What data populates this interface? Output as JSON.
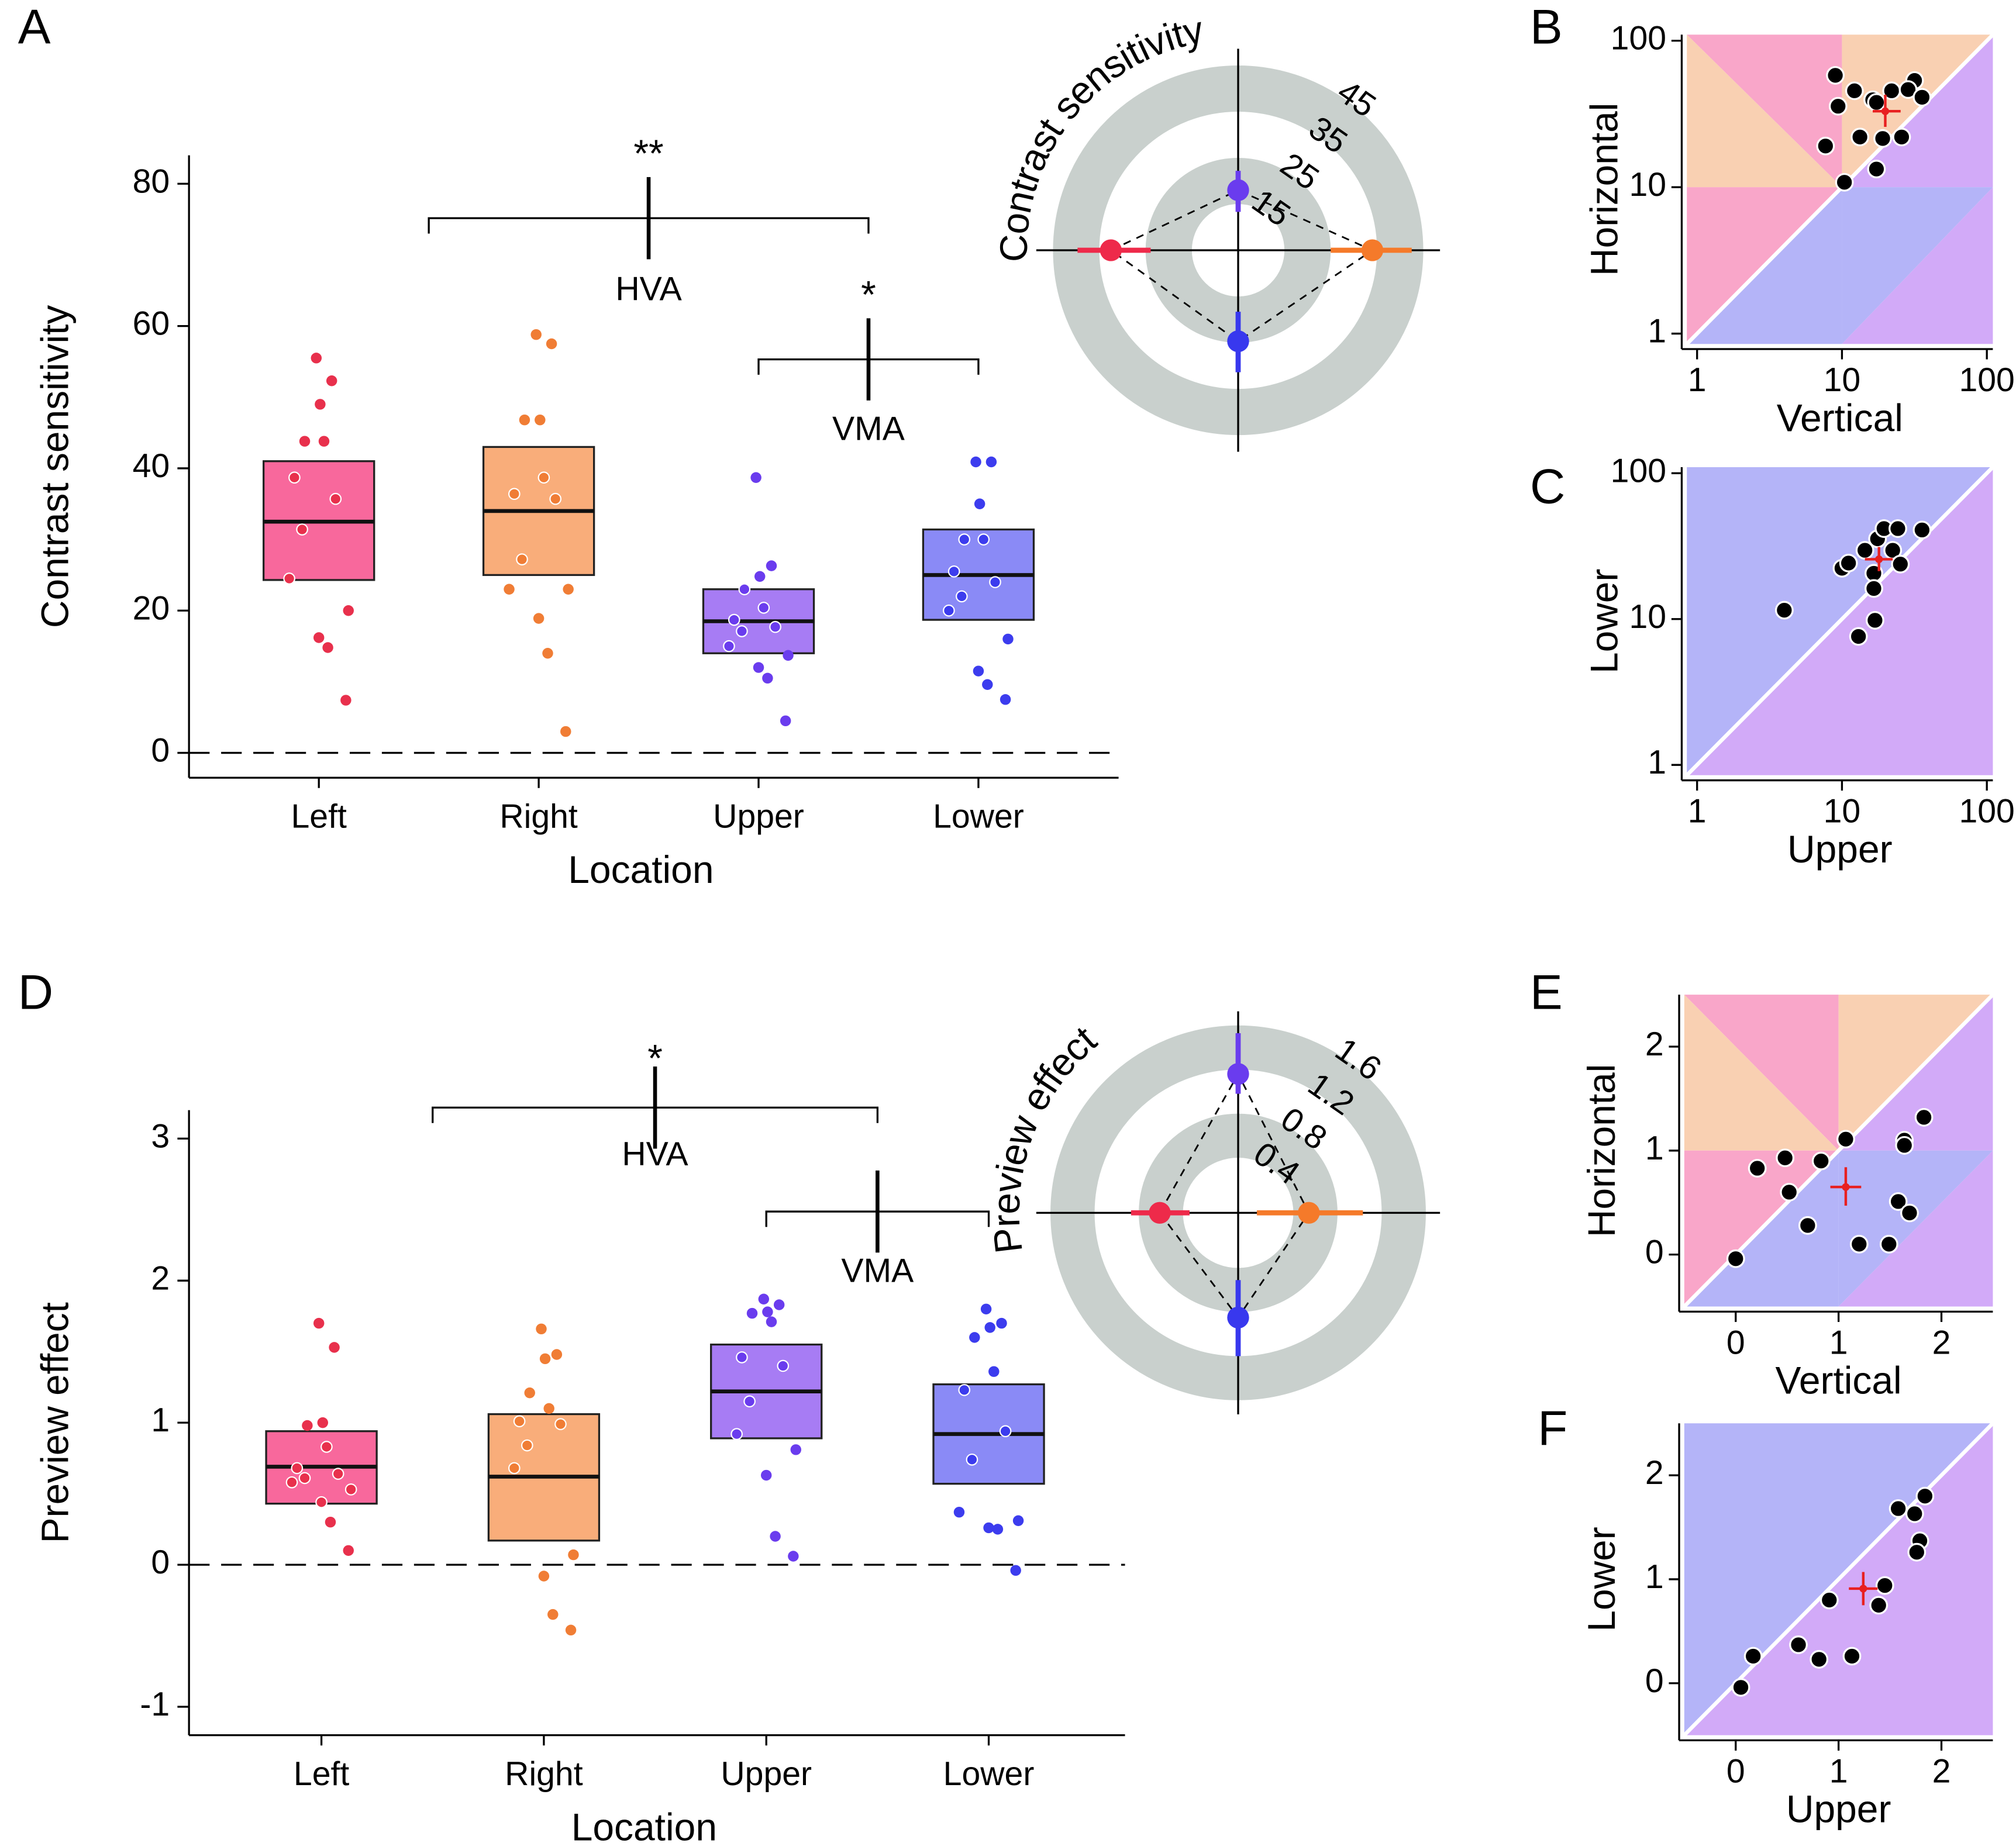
{
  "chart_data": [
    {
      "type": "box",
      "panel": "A",
      "ylabel": "Contrast sensitivity",
      "xlabel": "Location",
      "categories": [
        "Left",
        "Right",
        "Upper",
        "Lower"
      ],
      "box_colors": [
        "#f8689c",
        "#f9ad7a",
        "#a77cf4",
        "#8a8af6"
      ],
      "point_colors": [
        "#e8304c",
        "#f07d35",
        "#6a3cee",
        "#3c3cee"
      ],
      "boxes": [
        {
          "q1": 24.3,
          "median": 32.5,
          "q3": 41
        },
        {
          "q1": 25,
          "median": 34,
          "q3": 43
        },
        {
          "q1": 14,
          "median": 18.5,
          "q3": 23
        },
        {
          "q1": 18.7,
          "median": 25,
          "q3": 31.4
        }
      ],
      "points": [
        [
          55.5,
          52.3,
          49,
          43.8,
          43.8,
          38.7,
          35.7,
          31.4,
          24.5,
          20,
          16.2,
          14.8,
          7.4
        ],
        [
          58.8,
          57.5,
          46.8,
          46.8,
          38.7,
          36.4,
          35.7,
          27.2,
          23,
          23,
          18.9,
          14,
          3
        ],
        [
          38.7,
          26.3,
          24.8,
          23,
          20.4,
          18.7,
          17.7,
          17.1,
          15,
          13.7,
          12,
          10.5,
          4.5
        ],
        [
          40.9,
          40.9,
          35,
          30,
          30,
          25.5,
          24,
          22,
          20,
          16,
          11.5,
          9.6,
          7.5
        ]
      ],
      "brackets": [
        {
          "stars": "**",
          "label": "HVA"
        },
        {
          "stars": "*",
          "label": "VMA"
        }
      ],
      "ylim": [
        -3.5,
        84
      ],
      "yticks": [
        0,
        20,
        40,
        60,
        80
      ]
    },
    {
      "type": "polar",
      "title": "Contrast sensitivity",
      "values": [
        32.5,
        34,
        18,
        24.7
      ],
      "errors": [
        [
          23.9,
          39.7
        ],
        [
          25,
          42.5
        ],
        [
          13.3,
          22.2
        ],
        [
          18.3,
          31.4
        ]
      ],
      "colors": [
        "#ee2a4a",
        "#f57a2a",
        "#6a3cee",
        "#3838ee"
      ],
      "ring_color": "#c9d0cd",
      "rlim": [
        5,
        45
      ],
      "rticks": [
        15,
        25,
        35,
        45
      ]
    },
    {
      "type": "scatter",
      "panel": "B",
      "log": true,
      "xlabel": "Vertical",
      "ylabel": "Horizontal",
      "x": [
        9.0,
        12.2,
        16.3,
        22,
        31.7,
        28.6,
        35.7,
        17.3,
        9.4,
        7.7,
        13.3,
        19.1,
        25.8,
        10.4,
        17.3
      ],
      "y": [
        58,
        45.5,
        39.5,
        45.5,
        53.5,
        46.4,
        41.1,
        37.9,
        35.7,
        19.1,
        22,
        21.5,
        22,
        10.8,
        13.3
      ],
      "mean": {
        "x": 19.9,
        "y": 33,
        "xerr": [
          16.3,
          25.4
        ],
        "yerr": [
          25.8,
          42.8
        ]
      },
      "mean_color": "#e82020",
      "background_colors": [
        "#f9a6c9",
        "#f9d0b2",
        "#d2aaf8",
        "#b4b4f8"
      ],
      "xlim": [
        0.85,
        110
      ],
      "ylim": [
        0.85,
        110
      ],
      "xticks": [
        1,
        10,
        100
      ],
      "yticks": [
        1,
        10,
        100
      ]
    },
    {
      "type": "scatter",
      "panel": "C",
      "log": true,
      "xlabel": "Upper",
      "ylabel": "Lower",
      "x": [
        4.0,
        10,
        11.1,
        14.4,
        17.6,
        19.5,
        24.3,
        22.4,
        25.3,
        35.7,
        16.6,
        16.6,
        16.9,
        13
      ],
      "y": [
        11.5,
        22.3,
        24.2,
        29.6,
        35.5,
        41.7,
        41.7,
        29.6,
        23.8,
        40.8,
        20.6,
        16.2,
        9.8,
        7.6
      ],
      "mean": {
        "x": 18,
        "y": 25.7,
        "xerr": [
          14.4,
          22.4
        ],
        "yerr": [
          21.3,
          31.2
        ]
      },
      "mean_color": "#e82020",
      "background_colors": [
        "#b4b4f8",
        "#d2aaf8"
      ],
      "xlim": [
        0.85,
        110
      ],
      "ylim": [
        0.85,
        110
      ],
      "xticks": [
        1,
        10,
        100
      ],
      "yticks": [
        1,
        10,
        100
      ]
    },
    {
      "type": "box",
      "panel": "D",
      "ylabel": "Preview effect",
      "xlabel": "Location",
      "categories": [
        "Left",
        "Right",
        "Upper",
        "Lower"
      ],
      "box_colors": [
        "#f8689c",
        "#f9ad7a",
        "#a77cf4",
        "#8a8af6"
      ],
      "point_colors": [
        "#e8304c",
        "#f07d35",
        "#6a3cee",
        "#3c3cee"
      ],
      "boxes": [
        {
          "q1": 0.43,
          "median": 0.69,
          "q3": 0.94
        },
        {
          "q1": 0.17,
          "median": 0.62,
          "q3": 1.06
        },
        {
          "q1": 0.89,
          "median": 1.22,
          "q3": 1.55
        },
        {
          "q1": 0.57,
          "median": 0.92,
          "q3": 1.27
        }
      ],
      "points": [
        [
          1.7,
          1.53,
          1.0,
          0.98,
          0.83,
          0.68,
          0.64,
          0.61,
          0.58,
          0.53,
          0.44,
          0.3,
          0.1
        ],
        [
          1.66,
          1.48,
          1.45,
          1.21,
          1.1,
          1.01,
          0.99,
          0.84,
          0.68,
          0.07,
          -0.08,
          -0.35,
          -0.46
        ],
        [
          1.87,
          1.83,
          1.78,
          1.77,
          1.71,
          1.46,
          1.4,
          1.15,
          0.92,
          0.81,
          0.63,
          0.2,
          0.06
        ],
        [
          1.8,
          1.7,
          1.67,
          1.6,
          1.36,
          1.23,
          0.94,
          0.74,
          0.37,
          0.31,
          0.26,
          0.25,
          -0.04
        ]
      ],
      "brackets": [
        {
          "stars": "*",
          "label": "HVA"
        },
        {
          "label": "VMA"
        }
      ],
      "ylim": [
        -1.2,
        3.2
      ],
      "yticks": [
        -1,
        0,
        1,
        2,
        3
      ]
    },
    {
      "type": "polar",
      "title": "Preview effect",
      "values": [
        0.61,
        0.54,
        1.16,
        0.85
      ],
      "errors": [
        [
          0.34,
          0.87
        ],
        [
          0.07,
          1.03
        ],
        [
          0.98,
          1.53
        ],
        [
          0.51,
          1.2
        ]
      ],
      "colors": [
        "#ee2a4a",
        "#f57a2a",
        "#6a3cee",
        "#3838ee"
      ],
      "ring_color": "#c9d0cd",
      "rlim": [
        -0.1,
        1.6
      ],
      "rticks": [
        0.4,
        0.8,
        1.2,
        1.6
      ]
    },
    {
      "type": "scatter",
      "panel": "E",
      "log": false,
      "xlabel": "Vertical",
      "ylabel": "Horizontal",
      "x": [
        0,
        0.21,
        0.48,
        0.52,
        0.83,
        1.07,
        0.7,
        1.2,
        1.49,
        1.58,
        1.69,
        1.64,
        1.64,
        1.83
      ],
      "y": [
        -0.04,
        0.83,
        0.93,
        0.6,
        0.9,
        1.11,
        0.28,
        0.1,
        0.1,
        0.51,
        0.4,
        1.1,
        1.05,
        1.32
      ],
      "mean": {
        "x": 1.07,
        "y": 0.65,
        "xerr": [
          0.92,
          1.22
        ],
        "yerr": [
          0.47,
          0.84
        ]
      },
      "mean_color": "#e82020",
      "background_colors": [
        "#f9a6c9",
        "#f9d0b2",
        "#d2aaf8",
        "#b4b4f8"
      ],
      "xlim": [
        -0.5,
        2.5
      ],
      "ylim": [
        -0.5,
        2.5
      ],
      "xticks": [
        0,
        1,
        2
      ],
      "yticks": [
        0,
        1,
        2
      ]
    },
    {
      "type": "scatter",
      "panel": "F",
      "log": false,
      "xlabel": "Upper",
      "ylabel": "Lower",
      "x": [
        0.05,
        0.17,
        0.61,
        0.81,
        0.91,
        1.13,
        1.39,
        1.45,
        1.58,
        1.74,
        1.79,
        1.76,
        1.84
      ],
      "y": [
        -0.04,
        0.26,
        0.37,
        0.23,
        0.8,
        0.26,
        0.75,
        0.94,
        1.68,
        1.63,
        1.37,
        1.26,
        1.8
      ],
      "mean": {
        "x": 1.24,
        "y": 0.91,
        "xerr": [
          1.1,
          1.38
        ],
        "yerr": [
          0.75,
          1.07
        ]
      },
      "mean_color": "#e82020",
      "background_colors": [
        "#b4b4f8",
        "#d2aaf8"
      ],
      "xlim": [
        -0.5,
        2.5
      ],
      "ylim": [
        -0.5,
        2.5
      ],
      "xticks": [
        0,
        1,
        2
      ],
      "yticks": [
        0,
        1,
        2
      ]
    }
  ]
}
